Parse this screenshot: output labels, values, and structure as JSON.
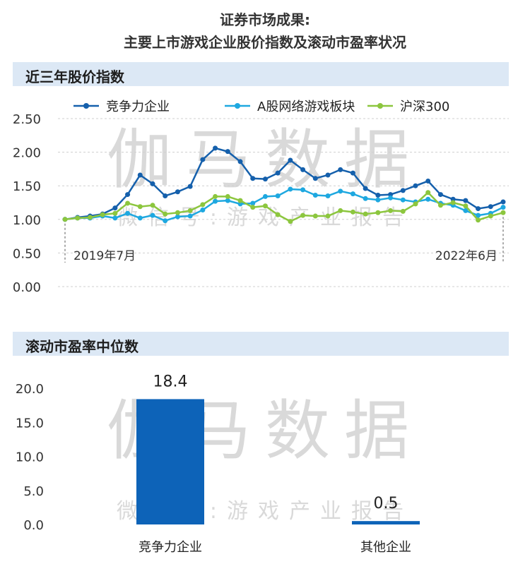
{
  "title_line1": "证券市场成果:",
  "title_line2": "主要上市游戏企业股价指数及滚动市盈率状况",
  "section1_title": "近三年股价指数",
  "section2_title": "滚动市盈率中位数",
  "watermark": {
    "main": "伽马数据",
    "sub": "微信号:游戏产业报告"
  },
  "colors": {
    "competitive": "#1560ac",
    "a_share": "#1ea8e0",
    "hs300": "#8cc63e",
    "bar": "#0d63b8",
    "section_bg": "#dce8f5"
  },
  "chart_data": [
    {
      "type": "line",
      "title": "近三年股价指数",
      "ylim": [
        0,
        2.5
      ],
      "yticks": [
        "0.00",
        "0.50",
        "1.00",
        "1.50",
        "2.00",
        "2.50"
      ],
      "x_start_label": "2019年7月",
      "x_end_label": "2022年6月",
      "legend_position": "top",
      "grid": "horizontal-dashed",
      "series": [
        {
          "name": "竞争力企业",
          "color": "#1560ac",
          "values": [
            1.0,
            1.03,
            1.05,
            1.08,
            1.17,
            1.37,
            1.66,
            1.53,
            1.35,
            1.41,
            1.49,
            1.89,
            2.06,
            2.01,
            1.86,
            1.61,
            1.6,
            1.69,
            1.88,
            1.74,
            1.61,
            1.66,
            1.74,
            1.69,
            1.46,
            1.36,
            1.37,
            1.43,
            1.5,
            1.57,
            1.37,
            1.3,
            1.28,
            1.16,
            1.19,
            1.26
          ]
        },
        {
          "name": "A股网络游戏板块",
          "color": "#1ea8e0",
          "values": [
            1.0,
            1.02,
            1.02,
            1.05,
            1.02,
            1.09,
            1.02,
            1.06,
            0.98,
            1.04,
            1.05,
            1.14,
            1.27,
            1.28,
            1.23,
            1.24,
            1.34,
            1.35,
            1.45,
            1.44,
            1.36,
            1.35,
            1.42,
            1.38,
            1.31,
            1.29,
            1.32,
            1.29,
            1.26,
            1.3,
            1.24,
            1.21,
            1.13,
            1.06,
            1.09,
            1.18
          ]
        },
        {
          "name": "沪深300",
          "color": "#8cc63e",
          "values": [
            1.0,
            1.02,
            1.03,
            1.07,
            1.09,
            1.24,
            1.19,
            1.21,
            1.08,
            1.1,
            1.13,
            1.22,
            1.34,
            1.34,
            1.28,
            1.18,
            1.2,
            1.07,
            0.97,
            1.06,
            1.05,
            1.05,
            1.13,
            1.11,
            1.08,
            1.1,
            1.13,
            1.12,
            1.23,
            1.4,
            1.21,
            1.25,
            1.2,
            0.99,
            1.05,
            1.1
          ]
        }
      ]
    },
    {
      "type": "bar",
      "title": "滚动市盈率中位数",
      "categories": [
        "竞争力企业",
        "其他企业"
      ],
      "values": [
        18.4,
        0.5
      ],
      "value_labels": [
        "18.4",
        "0.5"
      ],
      "ylim": [
        0,
        20
      ],
      "yticks": [
        "0.0",
        "5.0",
        "10.0",
        "15.0",
        "20.0"
      ]
    }
  ]
}
